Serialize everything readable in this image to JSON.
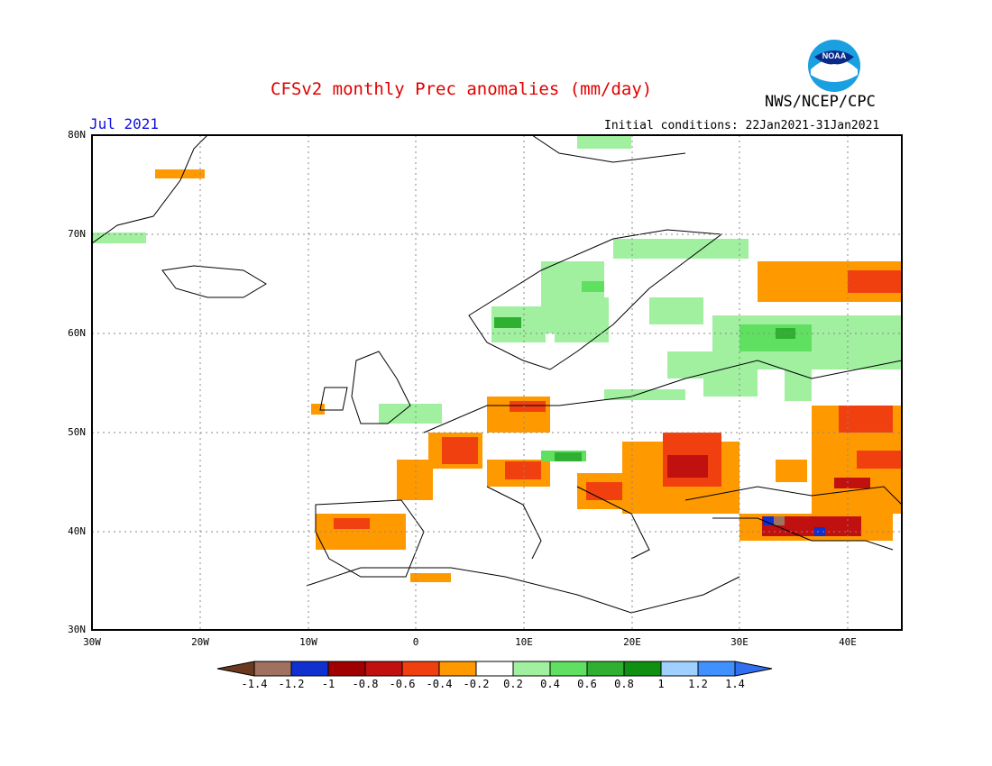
{
  "header": {
    "title": "CFSv2 monthly Prec anomalies (mm/day)",
    "org": "NWS/NCEP/CPC",
    "logo_text": "NOAA",
    "month": "Jul 2021",
    "initial_conditions": "Initial conditions: 22Jan2021-31Jan2021"
  },
  "map": {
    "lat_labels": [
      "80N",
      "70N",
      "60N",
      "50N",
      "40N",
      "30N"
    ],
    "lon_labels": [
      "30W",
      "20W",
      "10W",
      "0",
      "10E",
      "20E",
      "30E",
      "40E"
    ],
    "colors": {
      "frame": "#000000",
      "grid": "#888888",
      "coast": "#000000"
    }
  },
  "colorbar": {
    "labels": [
      "-1.4",
      "-1.2",
      "-1",
      "-0.8",
      "-0.6",
      "-0.4",
      "-0.2",
      "0.2",
      "0.4",
      "0.6",
      "0.8",
      "1",
      "1.2",
      "1.4"
    ],
    "colors": [
      "#6b3a1e",
      "#a07060",
      "#1030d0",
      "#a00000",
      "#c01010",
      "#f04010",
      "#ff9900",
      "#ffffff",
      "#a0f0a0",
      "#60e060",
      "#30b030",
      "#109010",
      "#a0d0ff",
      "#4090ff",
      "#3070f0"
    ]
  }
}
